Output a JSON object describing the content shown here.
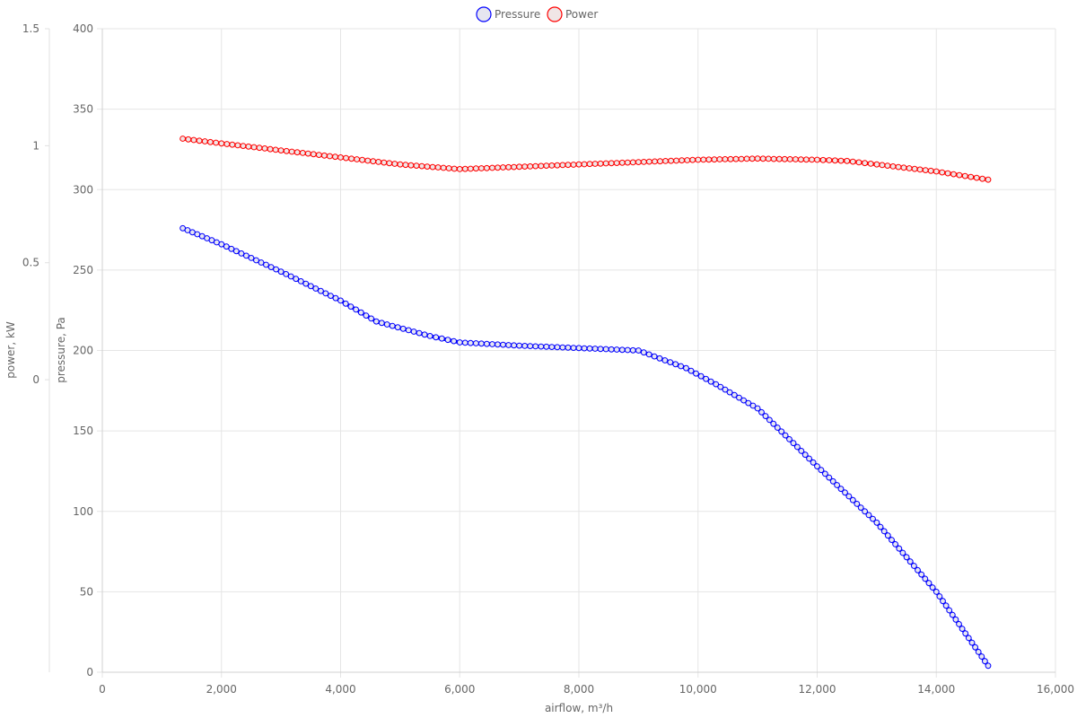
{
  "chart_data": {
    "type": "line",
    "title": "",
    "xlabel": "airflow, m³/h",
    "ylabel_left_outer": "power, kW",
    "ylabel_left_inner": "pressure, Pa",
    "xlim": [
      0,
      16000
    ],
    "x_ticks": [
      "0",
      "2,000",
      "4,000",
      "6,000",
      "8,000",
      "10,000",
      "12,000",
      "14,000",
      "16,000"
    ],
    "x_tick_values": [
      0,
      2000,
      4000,
      6000,
      8000,
      10000,
      12000,
      14000,
      16000
    ],
    "pressure_ylim": [
      0,
      400
    ],
    "pressure_ticks": [
      "0",
      "50",
      "100",
      "150",
      "200",
      "250",
      "300",
      "350",
      "400"
    ],
    "pressure_tick_values": [
      0,
      50,
      100,
      150,
      200,
      250,
      300,
      350,
      400
    ],
    "power_ylim": [
      -1.25,
      1.5
    ],
    "power_ticks": [
      "0",
      "0.5",
      "1",
      "1.5"
    ],
    "power_tick_values": [
      0,
      0.5,
      1,
      1.5
    ],
    "grid": true,
    "legend_position": "top-center",
    "series": [
      {
        "name": "Pressure",
        "axis": "pressure",
        "color": "#0000ff",
        "fill": "#e6e6f0",
        "points": [
          [
            1350,
            276
          ],
          [
            2000,
            266
          ],
          [
            3000,
            249
          ],
          [
            4000,
            231
          ],
          [
            4600,
            218
          ],
          [
            5500,
            209
          ],
          [
            6000,
            205
          ],
          [
            7000,
            203
          ],
          [
            8000,
            201.5
          ],
          [
            9000,
            200
          ],
          [
            9800,
            189
          ],
          [
            10300,
            179
          ],
          [
            11000,
            164
          ],
          [
            12000,
            128
          ],
          [
            13000,
            93
          ],
          [
            14000,
            50
          ],
          [
            14870,
            4
          ]
        ]
      },
      {
        "name": "Power",
        "axis": "power",
        "color": "#ff0000",
        "fill": "#f0e6e6",
        "points": [
          [
            1350,
            1.03
          ],
          [
            2000,
            1.01
          ],
          [
            3000,
            0.98
          ],
          [
            4000,
            0.95
          ],
          [
            5000,
            0.92
          ],
          [
            6000,
            0.9
          ],
          [
            7000,
            0.91
          ],
          [
            8000,
            0.92
          ],
          [
            9000,
            0.93
          ],
          [
            10000,
            0.94
          ],
          [
            11000,
            0.945
          ],
          [
            12000,
            0.94
          ],
          [
            12500,
            0.935
          ],
          [
            13000,
            0.92
          ],
          [
            14000,
            0.89
          ],
          [
            14870,
            0.855
          ]
        ]
      }
    ]
  }
}
